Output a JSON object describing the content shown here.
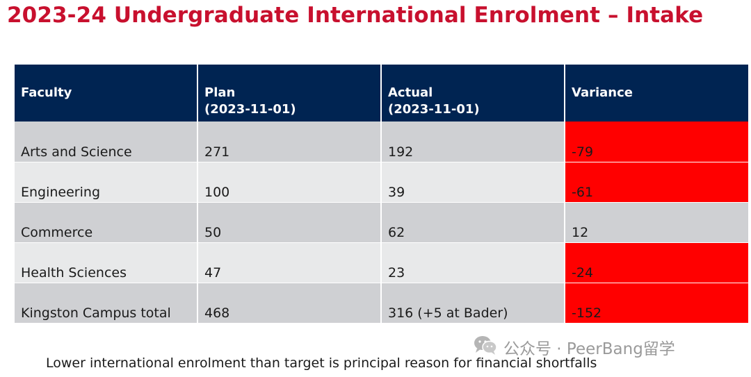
{
  "title": "2023-24 Undergraduate International Enrolment – Intake",
  "table": {
    "headers": {
      "faculty": "Faculty",
      "plan": "Plan",
      "plan_date": "(2023-11-01)",
      "actual": "Actual",
      "actual_date": "(2023-11-01)",
      "variance": "Variance"
    },
    "rows": [
      {
        "faculty": "Arts and Science",
        "plan": "271",
        "actual": "192",
        "variance": "-79"
      },
      {
        "faculty": "Engineering",
        "plan": "100",
        "actual": "39",
        "variance": "-61"
      },
      {
        "faculty": "Commerce",
        "plan": "50",
        "actual": "62",
        "variance": "12"
      },
      {
        "faculty": "Health Sciences",
        "plan": "47",
        "actual": "23",
        "variance": "-24"
      },
      {
        "faculty": "Kingston Campus total",
        "plan": "468",
        "actual": "316 (+5 at Bader)",
        "variance": "-152"
      }
    ]
  },
  "footnote": "Lower international enrolment than target is principal reason for financial shortfalls",
  "watermark": {
    "icon": "wechat-icon",
    "text": "公众号 · PeerBang留学"
  },
  "colors": {
    "title": "#c8102e",
    "header_bg": "#002452",
    "negative_variance": "#ff0000",
    "row_dark": "#cfd0d3",
    "row_light": "#e8e9ea"
  }
}
